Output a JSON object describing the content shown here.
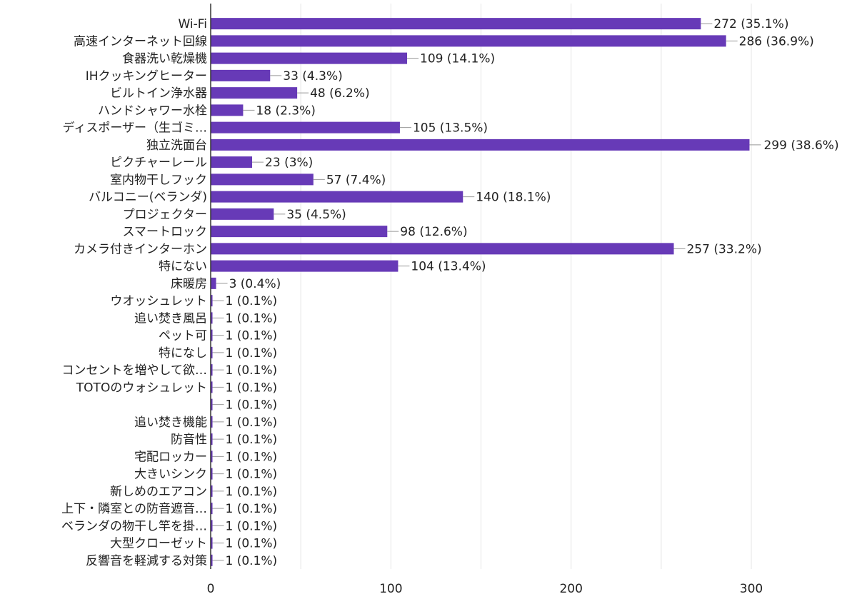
{
  "chart_data": {
    "type": "bar",
    "orientation": "horizontal",
    "title": "",
    "xlabel": "",
    "ylabel": "",
    "xlim": [
      0,
      300
    ],
    "x_ticks": [
      0,
      100,
      200,
      300
    ],
    "gridlines_every": 50,
    "grid": true,
    "color": "#673ab7",
    "categories": [
      "Wi-Fi",
      "高速インターネット回線",
      "食器洗い乾燥機",
      "IHクッキングヒーター",
      "ビルトイン浄水器",
      "ハンドシャワー水栓",
      "ディスポーザー（生ゴミ…",
      "独立洗面台",
      "ピクチャーレール",
      "室内物干しフック",
      "バルコニー(ベランダ)",
      "プロジェクター",
      "スマートロック",
      "カメラ付きインターホン",
      "特にない",
      "床暖房",
      "ウオッシュレット",
      "追い焚き風呂",
      "ペット可",
      "特になし",
      "コンセントを増やして欲…",
      "TOTOのウォシュレット",
      "",
      "追い焚き機能",
      "防音性",
      "宅配ロッカー",
      "大きいシンク",
      "新しめのエアコン",
      "上下・隣室との防音遮音…",
      "ベランダの物干し竿を掛…",
      "大型クローゼット",
      "反響音を軽減する対策"
    ],
    "values": [
      272,
      286,
      109,
      33,
      48,
      18,
      105,
      299,
      23,
      57,
      140,
      35,
      98,
      257,
      104,
      3,
      1,
      1,
      1,
      1,
      1,
      1,
      1,
      1,
      1,
      1,
      1,
      1,
      1,
      1,
      1,
      1
    ],
    "data_labels": [
      "272 (35.1%)",
      "286 (36.9%)",
      "109 (14.1%)",
      "33 (4.3%)",
      "48 (6.2%)",
      "18 (2.3%)",
      "105 (13.5%)",
      "299 (38.6%)",
      "23 (3%)",
      "57 (7.4%)",
      "140 (18.1%)",
      "35 (4.5%)",
      "98 (12.6%)",
      "257 (33.2%)",
      "104 (13.4%)",
      "3 (0.4%)",
      "1 (0.1%)",
      "1 (0.1%)",
      "1 (0.1%)",
      "1 (0.1%)",
      "1 (0.1%)",
      "1 (0.1%)",
      "1 (0.1%)",
      "1 (0.1%)",
      "1 (0.1%)",
      "1 (0.1%)",
      "1 (0.1%)",
      "1 (0.1%)",
      "1 (0.1%)",
      "1 (0.1%)",
      "1 (0.1%)",
      "1 (0.1%)"
    ]
  }
}
